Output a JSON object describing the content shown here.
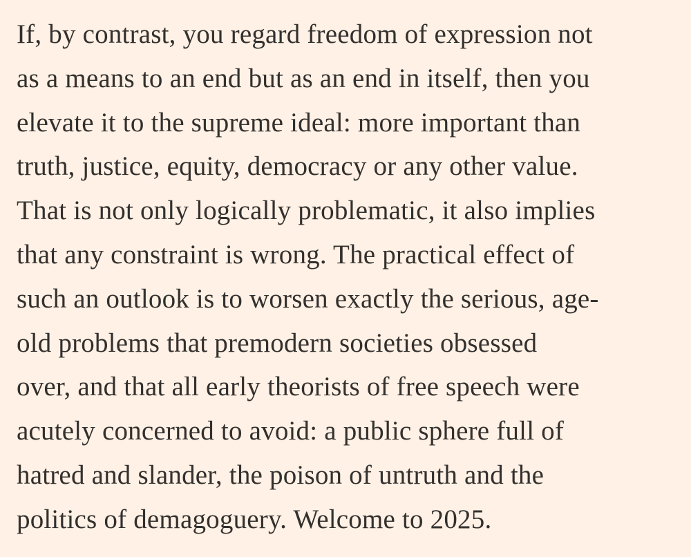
{
  "paragraph": {
    "lines": [
      "If, by contrast, you regard freedom of expression not",
      "as a means to an end but as an end in itself, then you",
      "elevate it to the supreme ideal: more important than",
      "truth, justice, equity, democracy or any other value.",
      "That is not only logically problematic, it also implies",
      "that any constraint is wrong. The practical effect of",
      "such an outlook is to worsen exactly the serious, age-",
      "old problems that premodern societies obsessed",
      "over, and that all early theorists of free speech were",
      "acutely concerned to avoid: a public sphere full of",
      "hatred and slander, the poison of untruth and the",
      "politics of demagoguery. Welcome to 2025."
    ]
  }
}
